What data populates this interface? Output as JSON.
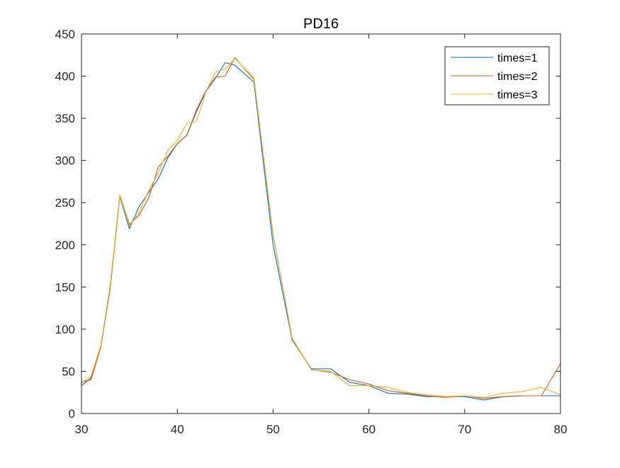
{
  "chart_data": {
    "type": "line",
    "title": "PD16",
    "xlabel": "",
    "ylabel": "",
    "xlim": [
      30,
      80
    ],
    "ylim": [
      0,
      450
    ],
    "xticks": [
      30,
      40,
      50,
      60,
      70,
      80
    ],
    "yticks": [
      0,
      50,
      100,
      150,
      200,
      250,
      300,
      350,
      400,
      450
    ],
    "xtick_labels": [
      "30",
      "40",
      "50",
      "60",
      "70",
      "80"
    ],
    "ytick_labels": [
      "0",
      "50",
      "100",
      "150",
      "200",
      "250",
      "300",
      "350",
      "400",
      "450"
    ],
    "grid": false,
    "legend_position": "top-right",
    "series": [
      {
        "name": "times=1",
        "color": "#0072BD",
        "x": [
          30,
          31,
          32,
          33,
          34,
          35,
          36,
          37,
          38,
          39,
          40,
          41,
          42,
          43,
          44,
          45,
          46,
          48,
          50,
          52,
          54,
          56,
          58,
          60,
          62,
          64,
          66,
          68,
          70,
          72,
          74,
          76,
          78,
          80
        ],
        "y": [
          33,
          42,
          78,
          148,
          257,
          219,
          245,
          262,
          278,
          303,
          320,
          330,
          358,
          382,
          398,
          416,
          413,
          393,
          200,
          87,
          53,
          53,
          37,
          33,
          24,
          23,
          20,
          20,
          20,
          16,
          20,
          21,
          21,
          21
        ]
      },
      {
        "name": "times=2",
        "color": "#D95319",
        "x": [
          30,
          31,
          32,
          33,
          34,
          35,
          36,
          37,
          38,
          39,
          40,
          41,
          42,
          43,
          44,
          45,
          46,
          48,
          50,
          52,
          54,
          56,
          58,
          60,
          62,
          64,
          66,
          68,
          70,
          72,
          74,
          76,
          78,
          80
        ],
        "y": [
          37,
          40,
          78,
          152,
          259,
          224,
          235,
          255,
          292,
          305,
          320,
          330,
          360,
          383,
          399,
          400,
          422,
          396,
          212,
          88,
          52,
          49,
          40,
          35,
          27,
          24,
          21,
          19,
          21,
          18,
          20,
          21,
          21,
          59
        ]
      },
      {
        "name": "times=3",
        "color": "#EDB120",
        "x": [
          30,
          31,
          32,
          33,
          34,
          35,
          36,
          37,
          38,
          39,
          40,
          41,
          42,
          43,
          44,
          45,
          46,
          48,
          50,
          52,
          54,
          56,
          58,
          60,
          62,
          64,
          66,
          68,
          70,
          72,
          74,
          76,
          78,
          80
        ],
        "y": [
          36,
          44,
          80,
          150,
          258,
          222,
          238,
          264,
          285,
          312,
          324,
          344,
          346,
          382,
          405,
          408,
          421,
          398,
          211,
          89,
          52,
          50,
          33,
          33,
          31,
          25,
          22,
          20,
          21,
          19,
          24,
          26,
          31,
          22
        ]
      }
    ]
  }
}
